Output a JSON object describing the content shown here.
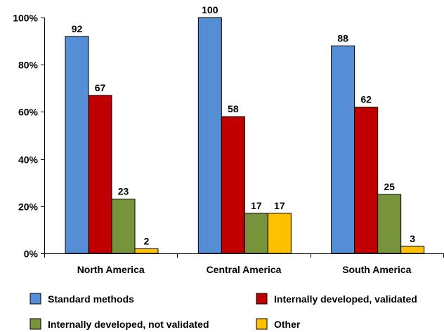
{
  "chart_data": {
    "type": "bar",
    "categories": [
      "North America",
      "Central America",
      "South America"
    ],
    "series": [
      {
        "name": "Standard methods",
        "values": [
          92,
          100,
          88
        ],
        "color": "#558ED5"
      },
      {
        "name": "Internally developed, validated",
        "values": [
          67,
          58,
          62
        ],
        "color": "#C00000"
      },
      {
        "name": "Internally developed, not validated",
        "values": [
          23,
          17,
          25
        ],
        "color": "#77933C"
      },
      {
        "name": "Other",
        "values": [
          2,
          17,
          3
        ],
        "color": "#FFC000"
      }
    ],
    "ylim": [
      0,
      100
    ],
    "yticks": [
      0,
      20,
      40,
      60,
      80,
      100
    ],
    "ytick_labels": [
      "0%",
      "20%",
      "40%",
      "60%",
      "80%",
      "100%"
    ],
    "grid": false,
    "legend_position": "bottom",
    "data_labels": true
  }
}
